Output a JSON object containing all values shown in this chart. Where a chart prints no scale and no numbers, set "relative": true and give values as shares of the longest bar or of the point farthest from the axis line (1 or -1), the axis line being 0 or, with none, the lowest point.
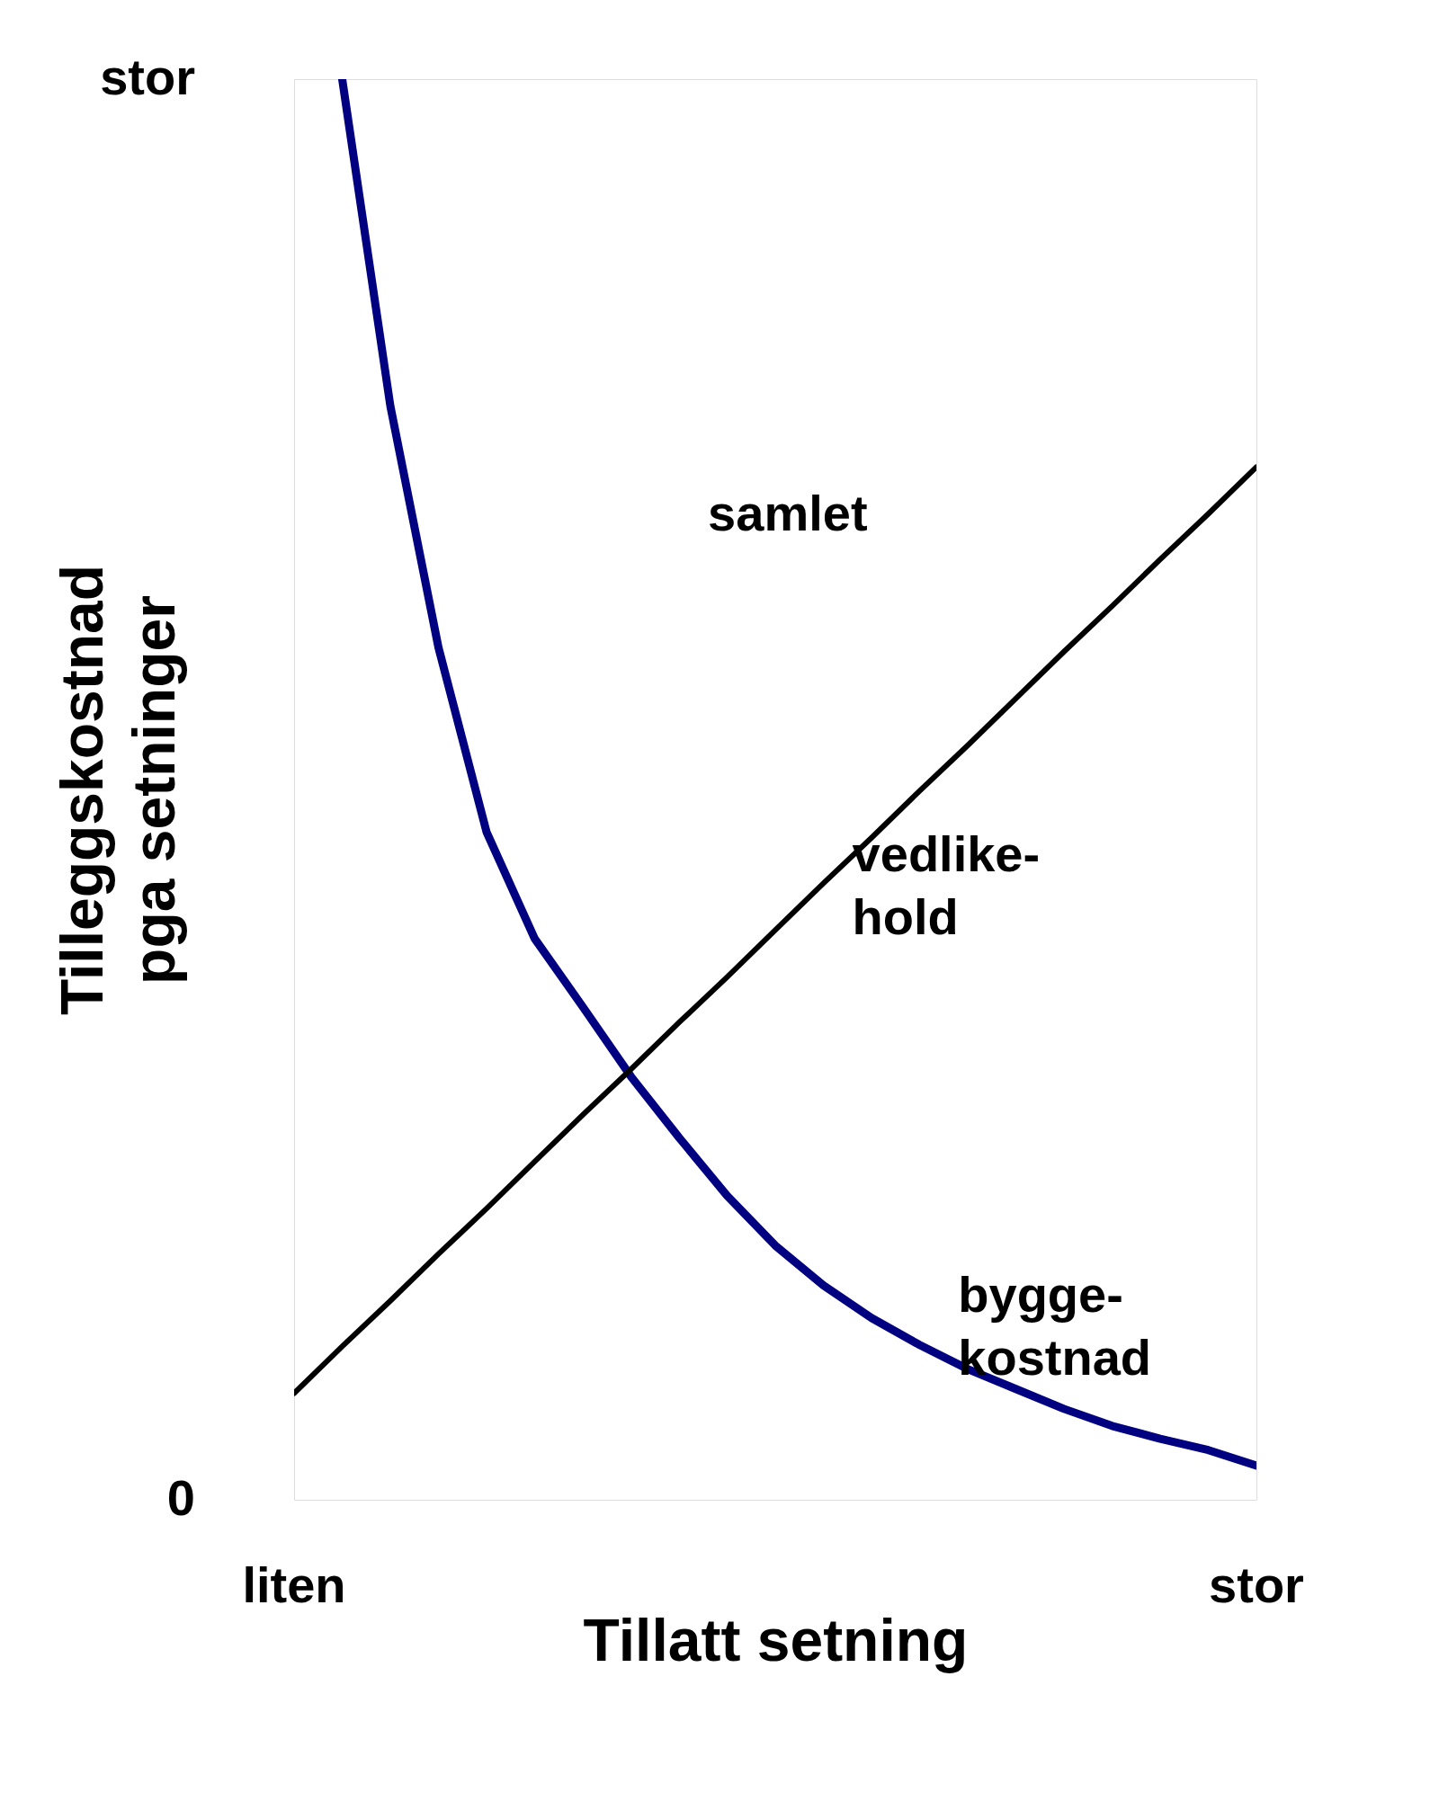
{
  "chart_data": {
    "type": "line",
    "relative": true,
    "xlabel": "Tillatt setning",
    "ylabel": "Tilleggskostnad\npga setninger",
    "categories": [
      null,
      null,
      null,
      null,
      null,
      null,
      null,
      null,
      null,
      null,
      null,
      null,
      null,
      null,
      null,
      null,
      null,
      null,
      null,
      null,
      null
    ],
    "grid": false,
    "marker": "none",
    "line_style": "solid",
    "annotations": [
      "samlet",
      "liten",
      "stor",
      "0",
      "stor"
    ],
    "series": [
      {
        "name": "bygge-\nkostnad",
        "color": "#000080",
        "values": [
          null,
          1.0,
          0.77,
          0.6,
          0.47,
          0.395,
          0.347,
          0.298,
          0.255,
          0.214,
          0.179,
          0.151,
          0.128,
          0.109,
          0.092,
          0.078,
          0.064,
          0.052,
          0.043,
          0.035,
          0.024
        ]
      },
      {
        "name": "vedlike-\nhold",
        "color": "#000000",
        "values": [
          0.075,
          0.108,
          0.14,
          0.173,
          0.205,
          0.238,
          0.271,
          0.303,
          0.336,
          0.368,
          0.401,
          0.434,
          0.466,
          0.499,
          0.531,
          0.564,
          0.597,
          0.629,
          0.662,
          0.694,
          0.727
        ]
      }
    ]
  }
}
